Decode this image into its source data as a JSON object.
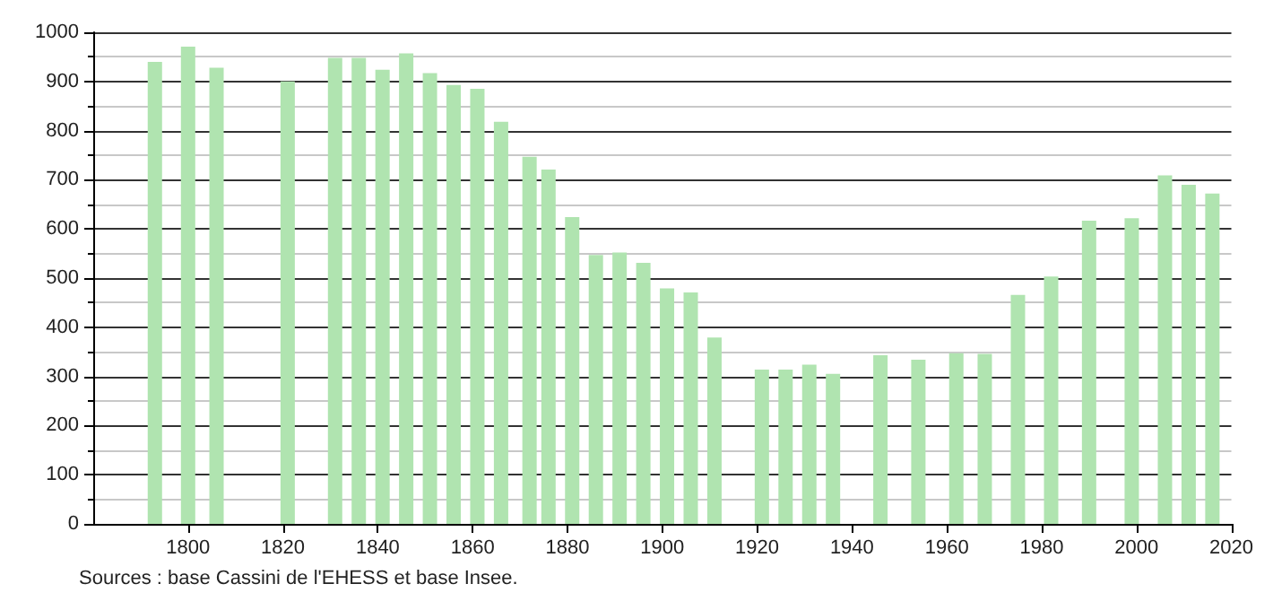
{
  "chart_data": {
    "type": "bar",
    "x": [
      1793,
      1800,
      1806,
      1821,
      1831,
      1836,
      1841,
      1846,
      1851,
      1856,
      1861,
      1866,
      1872,
      1876,
      1881,
      1886,
      1891,
      1896,
      1901,
      1906,
      1911,
      1921,
      1926,
      1931,
      1936,
      1946,
      1954,
      1962,
      1968,
      1975,
      1982,
      1990,
      1999,
      2006,
      2011,
      2016
    ],
    "values": [
      940,
      971,
      928,
      900,
      948,
      948,
      924,
      957,
      917,
      893,
      885,
      818,
      747,
      721,
      624,
      547,
      552,
      531,
      479,
      471,
      379,
      314,
      314,
      324,
      305,
      343,
      334,
      347,
      346,
      466,
      503,
      617,
      622,
      709,
      690,
      672
    ],
    "color": "#b0e4b0",
    "xlim": [
      1780,
      2020
    ],
    "xticks": [
      1800,
      1820,
      1840,
      1860,
      1880,
      1900,
      1920,
      1940,
      1960,
      1980,
      2000,
      2020
    ],
    "ylim": [
      0,
      1000
    ],
    "yticks": [
      0,
      100,
      200,
      300,
      400,
      500,
      600,
      700,
      800,
      900,
      1000
    ],
    "grid": "y",
    "annotations": [
      "Sources : base Cassini de l'EHESS et base Insee."
    ]
  }
}
